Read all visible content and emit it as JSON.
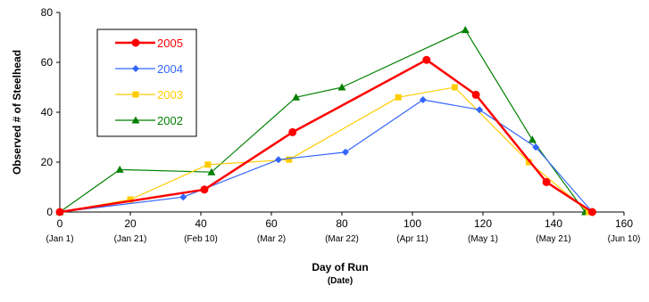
{
  "chart_data": {
    "type": "line",
    "title": "",
    "xlabel": "Day of Run",
    "xlabel_sub": "(Date)",
    "ylabel": "Observed # of Steelhead",
    "xlim": [
      0,
      160
    ],
    "ylim": [
      0,
      80
    ],
    "x_ticks": [
      {
        "value": 0,
        "label": "0",
        "date": "(Jan 1)"
      },
      {
        "value": 20,
        "label": "20",
        "date": "(Jan 21)"
      },
      {
        "value": 40,
        "label": "40",
        "date": "(Feb 10)"
      },
      {
        "value": 60,
        "label": "60",
        "date": "(Mar 2)"
      },
      {
        "value": 80,
        "label": "80",
        "date": "(Mar 22)"
      },
      {
        "value": 100,
        "label": "100",
        "date": "(Apr 11)"
      },
      {
        "value": 120,
        "label": "120",
        "date": "(May 1)"
      },
      {
        "value": 140,
        "label": "140",
        "date": "(May 21)"
      },
      {
        "value": 160,
        "label": "160",
        "date": "(Jun 10)"
      }
    ],
    "y_ticks": [
      {
        "value": 0,
        "label": "0"
      },
      {
        "value": 20,
        "label": "20"
      },
      {
        "value": 40,
        "label": "40"
      },
      {
        "value": 60,
        "label": "60"
      },
      {
        "value": 80,
        "label": "80"
      }
    ],
    "grid": false,
    "legend_position": "top-left",
    "series": [
      {
        "name": "2005",
        "color": "#ff0000",
        "marker": "circle",
        "line_width": "thick",
        "points": [
          [
            0,
            0
          ],
          [
            41,
            9
          ],
          [
            66,
            32
          ],
          [
            104,
            61
          ],
          [
            118,
            47
          ],
          [
            138,
            12
          ],
          [
            151,
            0
          ]
        ]
      },
      {
        "name": "2004",
        "color": "#3366ff",
        "marker": "diamond",
        "line_width": "thin",
        "points": [
          [
            0,
            0
          ],
          [
            35,
            6
          ],
          [
            62,
            21
          ],
          [
            81,
            24
          ],
          [
            103,
            45
          ],
          [
            119,
            41
          ],
          [
            135,
            26
          ],
          [
            151,
            0
          ]
        ]
      },
      {
        "name": "2003",
        "color": "#ffcc00",
        "marker": "square",
        "line_width": "thin",
        "points": [
          [
            0,
            0
          ],
          [
            20,
            5
          ],
          [
            42,
            19
          ],
          [
            65,
            21
          ],
          [
            96,
            46
          ],
          [
            112,
            50
          ],
          [
            133,
            20
          ],
          [
            150,
            0
          ]
        ]
      },
      {
        "name": "2002",
        "color": "#008000",
        "marker": "triangle",
        "line_width": "thin",
        "points": [
          [
            0,
            0
          ],
          [
            17,
            17
          ],
          [
            43,
            16
          ],
          [
            67,
            46
          ],
          [
            80,
            50
          ],
          [
            115,
            73
          ],
          [
            134,
            29
          ],
          [
            149,
            0
          ]
        ]
      }
    ]
  }
}
